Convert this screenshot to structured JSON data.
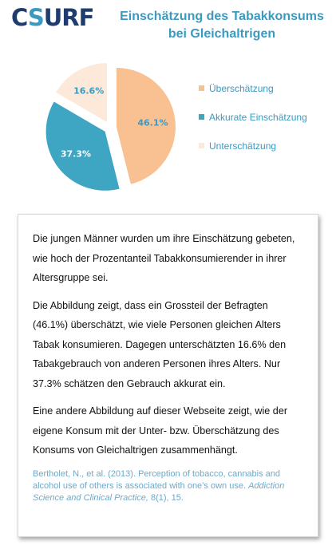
{
  "logo": {
    "pre": "C",
    "o": "S",
    "post": "URF"
  },
  "title": {
    "line1": "Einschätzung des Tabakkonsums",
    "line2": "bei Gleichaltrigen"
  },
  "colors": {
    "ueberschaetzung": "#f9c092",
    "akkurat": "#3ea5c3",
    "unterschaetzung": "#fde9d9",
    "accent": "#3a9ac0"
  },
  "chart_data": {
    "type": "pie",
    "title": "Einschätzung des Tabakkonsums bei Gleichaltrigen",
    "slices": [
      {
        "label": "Überschätzung",
        "value": 46.1,
        "value_label": "46.1%",
        "color": "#f9c092"
      },
      {
        "label": "Akkurate Einschätzung",
        "value": 37.3,
        "value_label": "37.3%",
        "color": "#3ea5c3"
      },
      {
        "label": "Unterschätzung",
        "value": 16.6,
        "value_label": "16.6%",
        "color": "#fde9d9"
      }
    ],
    "legend_position": "right"
  },
  "text": {
    "para1": "Die jungen Männer wurden um ihre Einschätzung gebeten, wie hoch der Prozentanteil Tabakkonsumierender in ihrer Altersgruppe sei.",
    "para2": "Die Abbildung zeigt, dass ein Grossteil der Befragten (46.1%) überschätzt, wie viele Personen gleichen Alters Tabak konsumieren. Dagegen unterschätzten 16.6% den Tabakgebrauch von anderen Personen ihres Alters. Nur 37.3% schätzen den Gebrauch akkurat ein.",
    "para3": "Eine andere Abbildung auf dieser Webseite zeigt, wie der eigene Konsum mit der Unter- bzw. Überschätzung des Konsums von Gleichaltrigen zusammenhängt.",
    "citation_main": "Bertholet, N., et al. (2013). Perception of tobacco, cannabis and alcohol use of others is associated with one’s own use. ",
    "citation_journal": "Addiction Science and Clinical Practice,",
    "citation_tail": " 8(1), 15."
  }
}
